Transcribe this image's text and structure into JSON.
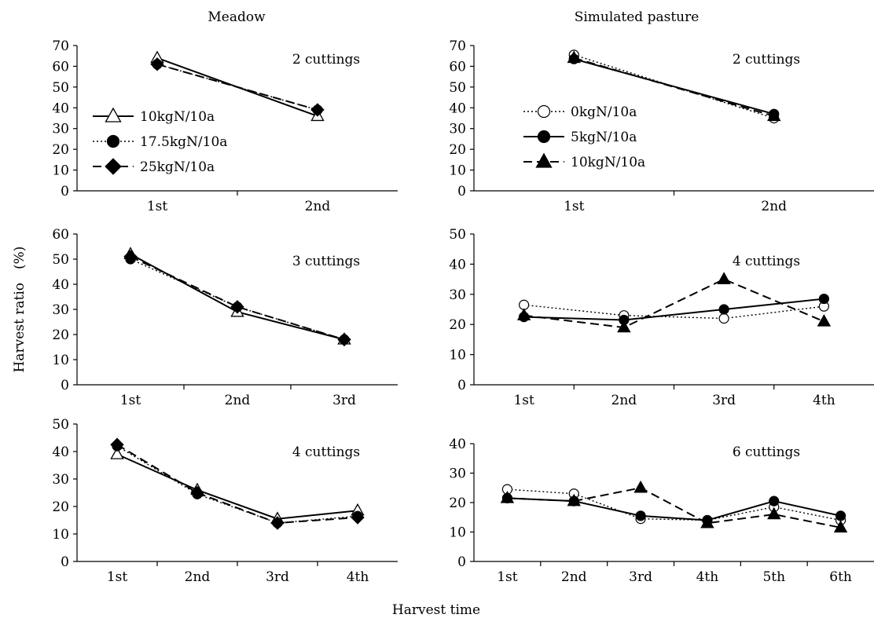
{
  "figure": {
    "col_titles": [
      "Meadow",
      "Simulated pasture"
    ],
    "ylabel": "Harvest ratio　(%)",
    "xlabel": "Harvest time"
  },
  "legends": {
    "meadow": [
      "10kgN/10a",
      "17.5kgN/10a",
      "25kgN/10a"
    ],
    "pasture": [
      "0kgN/10a",
      "5kgN/10a",
      "10kgN/10a"
    ]
  },
  "chart_data": [
    {
      "type": "line",
      "panel": "Meadow",
      "annotation": "2 cuttings",
      "categories": [
        "1st",
        "2nd"
      ],
      "ylim": [
        0,
        70
      ],
      "yticks": [
        0,
        10,
        20,
        30,
        40,
        50,
        60,
        70
      ],
      "series": [
        {
          "name": "10kgN/10a",
          "marker": "open-triangle",
          "line": "solid",
          "values": [
            64,
            36
          ]
        },
        {
          "name": "17.5kgN/10a",
          "marker": "filled-circle",
          "line": "dotted",
          "values": [
            61,
            39
          ]
        },
        {
          "name": "25kgN/10a",
          "marker": "filled-diamond",
          "line": "dashed",
          "values": [
            61,
            39
          ]
        }
      ]
    },
    {
      "type": "line",
      "panel": "Meadow",
      "annotation": "3 cuttings",
      "categories": [
        "1st",
        "2nd",
        "3rd"
      ],
      "ylim": [
        0,
        60
      ],
      "yticks": [
        0,
        10,
        20,
        30,
        40,
        50,
        60
      ],
      "series": [
        {
          "name": "10kgN/10a",
          "marker": "open-triangle",
          "line": "solid",
          "values": [
            52,
            29,
            18
          ]
        },
        {
          "name": "17.5kgN/10a",
          "marker": "filled-circle",
          "line": "dotted",
          "values": [
            50,
            31,
            18
          ]
        },
        {
          "name": "25kgN/10a",
          "marker": "filled-diamond",
          "line": "dashed",
          "values": [
            51,
            31,
            18
          ]
        }
      ]
    },
    {
      "type": "line",
      "panel": "Meadow",
      "annotation": "4 cuttings",
      "categories": [
        "1st",
        "2nd",
        "3rd",
        "4th"
      ],
      "ylim": [
        0,
        50
      ],
      "yticks": [
        0,
        10,
        20,
        30,
        40,
        50
      ],
      "series": [
        {
          "name": "10kgN/10a",
          "marker": "open-triangle",
          "line": "solid",
          "values": [
            39,
            26,
            15.5,
            18.5
          ]
        },
        {
          "name": "17.5kgN/10a",
          "marker": "filled-circle",
          "line": "dotted",
          "values": [
            42,
            24.5,
            14,
            16.5
          ]
        },
        {
          "name": "25kgN/10a",
          "marker": "filled-diamond",
          "line": "dashed",
          "values": [
            42.5,
            25,
            14,
            16
          ]
        }
      ]
    },
    {
      "type": "line",
      "panel": "Simulated pasture",
      "annotation": "2 cuttings",
      "categories": [
        "1st",
        "2nd"
      ],
      "ylim": [
        0,
        70
      ],
      "yticks": [
        0,
        10,
        20,
        30,
        40,
        50,
        60,
        70
      ],
      "series": [
        {
          "name": "0kgN/10a",
          "marker": "open-circle",
          "line": "dotted",
          "values": [
            65.5,
            35
          ]
        },
        {
          "name": "5kgN/10a",
          "marker": "filled-circle",
          "line": "solid",
          "values": [
            63.5,
            37
          ]
        },
        {
          "name": "10kgN/10a",
          "marker": "filled-triangle",
          "line": "dashed",
          "values": [
            64,
            36
          ]
        }
      ]
    },
    {
      "type": "line",
      "panel": "Simulated pasture",
      "annotation": "4 cuttings",
      "categories": [
        "1st",
        "2nd",
        "3rd",
        "4th"
      ],
      "ylim": [
        0,
        50
      ],
      "yticks": [
        0,
        10,
        20,
        30,
        40,
        50
      ],
      "series": [
        {
          "name": "0kgN/10a",
          "marker": "open-circle",
          "line": "dotted",
          "values": [
            26.5,
            23,
            22,
            26
          ]
        },
        {
          "name": "5kgN/10a",
          "marker": "filled-circle",
          "line": "solid",
          "values": [
            22.5,
            21.5,
            25,
            28.5
          ]
        },
        {
          "name": "10kgN/10a",
          "marker": "filled-triangle",
          "line": "dashed",
          "values": [
            23,
            19,
            35,
            21
          ]
        }
      ]
    },
    {
      "type": "line",
      "panel": "Simulated pasture",
      "annotation": "6 cuttings",
      "categories": [
        "1st",
        "2nd",
        "3rd",
        "4th",
        "5th",
        "6th"
      ],
      "ylim": [
        0,
        40
      ],
      "yticks": [
        0,
        10,
        20,
        30,
        40
      ],
      "series": [
        {
          "name": "0kgN/10a",
          "marker": "open-circle",
          "line": "dotted",
          "values": [
            24.5,
            23,
            14.5,
            14,
            18.5,
            14
          ]
        },
        {
          "name": "5kgN/10a",
          "marker": "filled-circle",
          "line": "solid",
          "values": [
            21.5,
            20.5,
            15.5,
            14,
            20.5,
            15.5
          ]
        },
        {
          "name": "10kgN/10a",
          "marker": "filled-triangle",
          "line": "dashed",
          "values": [
            21.5,
            20.5,
            25,
            13,
            16,
            11.5
          ]
        }
      ]
    }
  ]
}
